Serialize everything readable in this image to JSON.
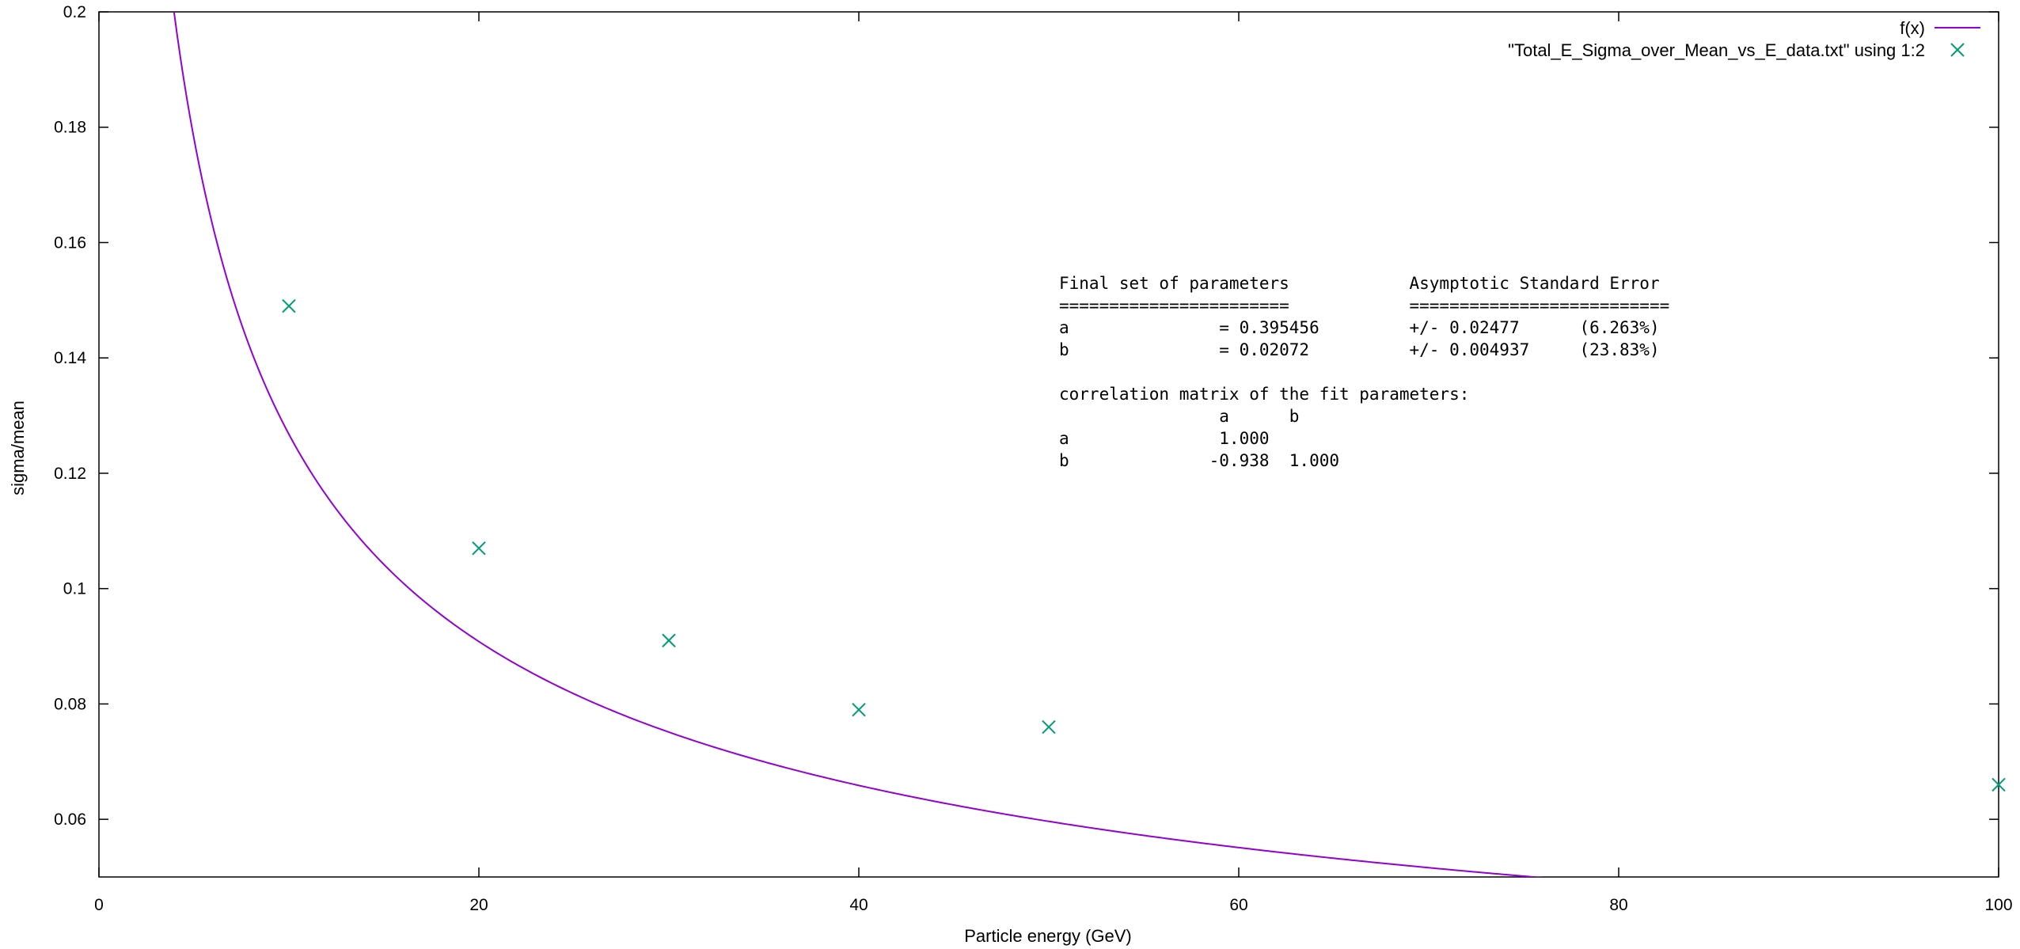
{
  "chart_data": {
    "type": "scatter",
    "xlabel": "Particle energy (GeV)",
    "ylabel": "sigma/mean",
    "xlim": [
      0,
      100
    ],
    "ylim": [
      0.05,
      0.2
    ],
    "x_ticks": [
      0,
      20,
      40,
      60,
      80,
      100
    ],
    "y_ticks": [
      0.06,
      0.08,
      0.1,
      0.12,
      0.14,
      0.16,
      0.18,
      0.2
    ],
    "grid": false,
    "legend_position": "top-right",
    "series": [
      {
        "name": "f(x)",
        "kind": "line",
        "color": "#9400d3",
        "fit_params": {
          "a": 0.395456,
          "b": 0.02072
        }
      },
      {
        "name": "\"Total_E_Sigma_over_Mean_vs_E_data.txt\" using 1:2",
        "kind": "points",
        "marker": "x",
        "color": "#009e73",
        "x": [
          10,
          20,
          30,
          40,
          50,
          100
        ],
        "y": [
          0.149,
          0.107,
          0.091,
          0.079,
          0.076,
          0.066
        ]
      }
    ],
    "annotation_lines": [
      "Final set of parameters            Asymptotic Standard Error",
      "=======================            ==========================",
      "a               = 0.395456         +/- 0.02477      (6.263%)",
      "b               = 0.02072          +/- 0.004937     (23.83%)",
      "",
      "correlation matrix of the fit parameters:",
      "                a      b",
      "a               1.000",
      "b              -0.938  1.000"
    ]
  }
}
